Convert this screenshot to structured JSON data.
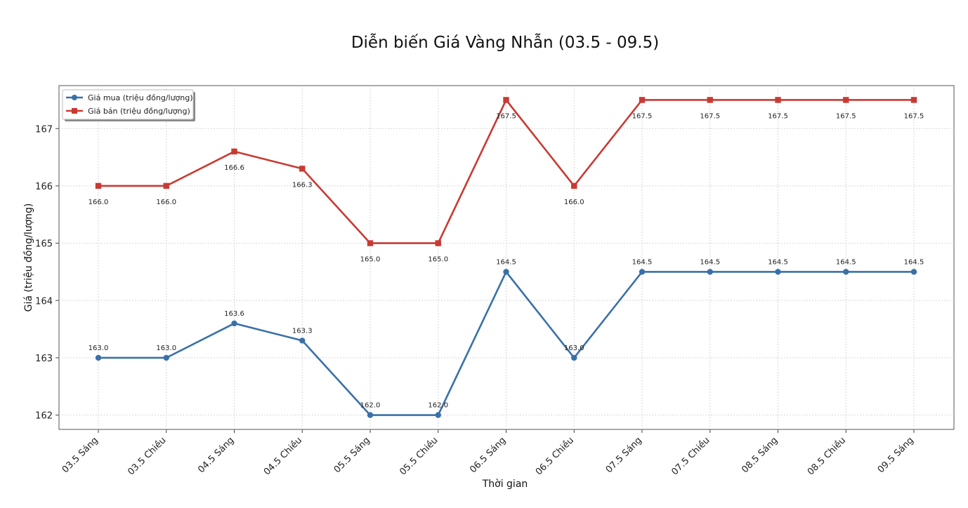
{
  "chart_data": {
    "type": "line",
    "title": "Diễn biến Giá Vàng Nhẫn (03.5 - 09.5)",
    "xlabel": "Thời gian",
    "ylabel": "Giá (triệu đồng/lượng)",
    "categories": [
      "03.5 Sáng",
      "03.5 Chiều",
      "04.5 Sáng",
      "04.5 Chiều",
      "05.5 Sáng",
      "05.5 Chiều",
      "06.5 Sáng",
      "06.5 Chiều",
      "07.5 Sáng",
      "07.5 Chiều",
      "08.5 Sáng",
      "08.5 Chiều",
      "09.5 Sáng"
    ],
    "yticks": [
      162,
      163,
      164,
      165,
      166,
      167
    ],
    "ylim": [
      161.75,
      167.75
    ],
    "grid": true,
    "legend_position": "top-left",
    "series": [
      {
        "name": "Giá mua (triệu đồng/lượng)",
        "color": "#3a70a8",
        "marker": "circle",
        "values": [
          163.0,
          163.0,
          163.6,
          163.3,
          162.0,
          162.0,
          164.5,
          163.0,
          164.5,
          164.5,
          164.5,
          164.5,
          164.5
        ],
        "labels": [
          "163.0",
          "163.0",
          "163.6",
          "163.3",
          "162.0",
          "162.0",
          "164.5",
          "163.0",
          "164.5",
          "164.5",
          "164.5",
          "164.5",
          "164.5"
        ]
      },
      {
        "name": "Giá bán (triệu đồng/lượng)",
        "color": "#c93a33",
        "marker": "square",
        "values": [
          166.0,
          166.0,
          166.6,
          166.3,
          165.0,
          165.0,
          167.5,
          166.0,
          167.5,
          167.5,
          167.5,
          167.5,
          167.5
        ],
        "labels": [
          "166.0",
          "166.0",
          "166.6",
          "166.3",
          "165.0",
          "165.0",
          "167.5",
          "166.0",
          "167.5",
          "167.5",
          "167.5",
          "167.5",
          "167.5"
        ]
      }
    ]
  }
}
